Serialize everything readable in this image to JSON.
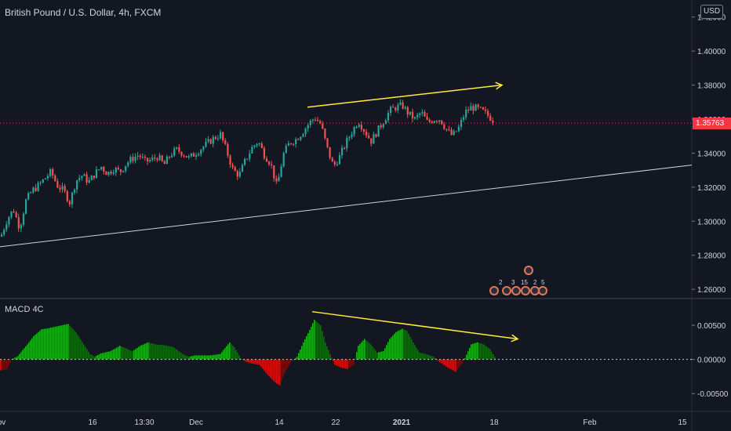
{
  "header": {
    "symbol_title": "British Pound / U.S. Dollar, 4h, FXCM",
    "currency_button": "USD"
  },
  "last_price": {
    "value": 1.35763,
    "label": "1.35763",
    "color": "#f23645"
  },
  "macd_title": "MACD 4C",
  "colors": {
    "background": "#131722",
    "up": "#26a69a",
    "down": "#ef5350",
    "annotation": "#ffeb3b",
    "trendline": "#d1d4dc",
    "macd_pos": "#1bb51b",
    "macd_pos_dark": "#0f6d0f",
    "macd_neg": "#d31212",
    "macd_neg_dark": "#7a0c0c",
    "event_marker": "#e2765a"
  },
  "events": {
    "counts": [
      "2",
      "3",
      "15",
      "2",
      "5"
    ],
    "icon": "flag-icon"
  },
  "chart_data": [
    {
      "type": "candlestick",
      "title": "British Pound / U.S. Dollar, 4h, FXCM",
      "ylim": [
        1.255,
        1.43
      ],
      "y_ticks": [
        1.26,
        1.28,
        1.3,
        1.32,
        1.34,
        1.36,
        1.38,
        1.4,
        1.42
      ],
      "y_tick_labels": [
        "1.26000",
        "1.28000",
        "1.30000",
        "1.32000",
        "1.34000",
        "1.36000",
        "1.38000",
        "1.40000",
        "1.42000"
      ],
      "x_ticks": [
        "ov",
        "16",
        "13:30",
        "Dec",
        "14",
        "22",
        "2021",
        "18",
        "Feb",
        "15"
      ],
      "close_path": [
        [
          0,
          1.291
        ],
        [
          8,
          1.301
        ],
        [
          16,
          1.307
        ],
        [
          24,
          1.296
        ],
        [
          32,
          1.312
        ],
        [
          40,
          1.318
        ],
        [
          48,
          1.321
        ],
        [
          56,
          1.325
        ],
        [
          64,
          1.329
        ],
        [
          72,
          1.321
        ],
        [
          80,
          1.318
        ],
        [
          88,
          1.311
        ],
        [
          96,
          1.324
        ],
        [
          104,
          1.327
        ],
        [
          112,
          1.323
        ],
        [
          120,
          1.328
        ],
        [
          128,
          1.332
        ],
        [
          136,
          1.328
        ],
        [
          144,
          1.331
        ],
        [
          152,
          1.329
        ],
        [
          160,
          1.334
        ],
        [
          168,
          1.337
        ],
        [
          176,
          1.339
        ],
        [
          184,
          1.335
        ],
        [
          192,
          1.336
        ],
        [
          200,
          1.338
        ],
        [
          208,
          1.333
        ],
        [
          216,
          1.339
        ],
        [
          224,
          1.342
        ],
        [
          232,
          1.34
        ],
        [
          240,
          1.337
        ],
        [
          248,
          1.34
        ],
        [
          256,
          1.343
        ],
        [
          264,
          1.346
        ],
        [
          272,
          1.349
        ],
        [
          280,
          1.351
        ],
        [
          288,
          1.341
        ],
        [
          296,
          1.33
        ],
        [
          304,
          1.327
        ],
        [
          312,
          1.336
        ],
        [
          320,
          1.343
        ],
        [
          328,
          1.347
        ],
        [
          336,
          1.339
        ],
        [
          344,
          1.334
        ],
        [
          352,
          1.32
        ],
        [
          360,
          1.339
        ],
        [
          368,
          1.346
        ],
        [
          376,
          1.348
        ],
        [
          384,
          1.352
        ],
        [
          392,
          1.357
        ],
        [
          400,
          1.361
        ],
        [
          408,
          1.357
        ],
        [
          416,
          1.343
        ],
        [
          424,
          1.332
        ],
        [
          432,
          1.338
        ],
        [
          440,
          1.346
        ],
        [
          448,
          1.353
        ],
        [
          456,
          1.359
        ],
        [
          464,
          1.353
        ],
        [
          472,
          1.347
        ],
        [
          480,
          1.353
        ],
        [
          488,
          1.359
        ],
        [
          496,
          1.365
        ],
        [
          504,
          1.367
        ],
        [
          512,
          1.368
        ],
        [
          520,
          1.363
        ],
        [
          528,
          1.36
        ],
        [
          536,
          1.364
        ],
        [
          544,
          1.358
        ],
        [
          552,
          1.36
        ],
        [
          560,
          1.36
        ],
        [
          568,
          1.354
        ],
        [
          576,
          1.35
        ],
        [
          584,
          1.355
        ],
        [
          592,
          1.364
        ],
        [
          600,
          1.367
        ],
        [
          608,
          1.366
        ],
        [
          616,
          1.364
        ],
        [
          624,
          1.361
        ],
        [
          630,
          1.358
        ]
      ],
      "annotations": [
        {
          "type": "arrow-line",
          "from": [
            392,
            1.367
          ],
          "to": [
            640,
            1.38
          ],
          "color": "#ffeb3b"
        },
        {
          "type": "trendline",
          "from": [
            0,
            1.285
          ],
          "to": [
            882,
            1.333
          ],
          "color": "#d1d4dc"
        }
      ]
    },
    {
      "type": "histogram",
      "title": "MACD 4C",
      "ylim": [
        -0.0075,
        0.0088
      ],
      "y_ticks": [
        -0.005,
        0.0,
        0.005
      ],
      "y_tick_labels": [
        "-0.00500",
        "0.00000",
        "0.00500"
      ],
      "envelope": [
        [
          0,
          -0.0016
        ],
        [
          8,
          -0.0014
        ],
        [
          14,
          0.0
        ],
        [
          22,
          0.0005
        ],
        [
          34,
          0.0022
        ],
        [
          42,
          0.0034
        ],
        [
          52,
          0.0044
        ],
        [
          62,
          0.0046
        ],
        [
          74,
          0.0049
        ],
        [
          86,
          0.0052
        ],
        [
          96,
          0.004
        ],
        [
          106,
          0.0022
        ],
        [
          114,
          0.0008
        ],
        [
          120,
          0.0004
        ],
        [
          128,
          0.0009
        ],
        [
          140,
          0.0012
        ],
        [
          152,
          0.002
        ],
        [
          160,
          0.0016
        ],
        [
          168,
          0.0012
        ],
        [
          178,
          0.002
        ],
        [
          188,
          0.0025
        ],
        [
          198,
          0.0022
        ],
        [
          208,
          0.0021
        ],
        [
          220,
          0.0018
        ],
        [
          232,
          0.0008
        ],
        [
          240,
          0.0004
        ],
        [
          248,
          0.0006
        ],
        [
          258,
          0.0006
        ],
        [
          268,
          0.0006
        ],
        [
          280,
          0.0008
        ],
        [
          292,
          0.0025
        ],
        [
          298,
          0.0018
        ],
        [
          306,
          0.0002
        ],
        [
          312,
          -0.0003
        ],
        [
          320,
          -0.0006
        ],
        [
          330,
          -0.0008
        ],
        [
          340,
          -0.0022
        ],
        [
          350,
          -0.0034
        ],
        [
          356,
          -0.0038
        ],
        [
          362,
          -0.002
        ],
        [
          370,
          -0.0004
        ],
        [
          378,
          0.0004
        ],
        [
          386,
          0.0025
        ],
        [
          394,
          0.0043
        ],
        [
          400,
          0.0058
        ],
        [
          408,
          0.005
        ],
        [
          414,
          0.0025
        ],
        [
          420,
          0.0008
        ],
        [
          426,
          -0.0008
        ],
        [
          434,
          -0.0012
        ],
        [
          442,
          -0.0014
        ],
        [
          450,
          -0.0008
        ],
        [
          456,
          0.002
        ],
        [
          464,
          0.003
        ],
        [
          472,
          0.0022
        ],
        [
          480,
          0.001
        ],
        [
          488,
          0.0012
        ],
        [
          496,
          0.003
        ],
        [
          504,
          0.004
        ],
        [
          512,
          0.0045
        ],
        [
          518,
          0.0042
        ],
        [
          526,
          0.0025
        ],
        [
          534,
          0.001
        ],
        [
          542,
          0.0008
        ],
        [
          552,
          0.0004
        ],
        [
          560,
          -0.0004
        ],
        [
          570,
          -0.0012
        ],
        [
          580,
          -0.0018
        ],
        [
          586,
          -0.001
        ],
        [
          592,
          0.0002
        ],
        [
          600,
          0.0022
        ],
        [
          608,
          0.0025
        ],
        [
          616,
          0.0022
        ],
        [
          624,
          0.0015
        ],
        [
          630,
          0.0004
        ]
      ],
      "annotations": [
        {
          "type": "arrow-line",
          "from": [
            398,
            0.007
          ],
          "to": [
            660,
            0.003
          ],
          "color": "#ffeb3b"
        }
      ]
    }
  ]
}
